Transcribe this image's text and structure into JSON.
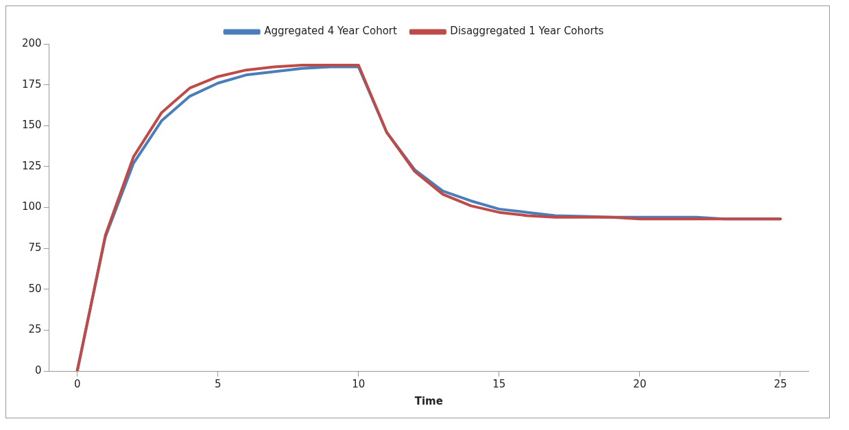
{
  "chart_data": {
    "type": "line",
    "xlabel": "Time",
    "x": [
      0,
      1,
      2,
      3,
      4,
      5,
      6,
      7,
      8,
      9,
      10,
      11,
      12,
      13,
      14,
      15,
      16,
      17,
      18,
      19,
      20,
      21,
      22,
      23,
      24,
      25
    ],
    "series": [
      {
        "name": "Aggregated 4 Year Cohort",
        "color": "#4a7ebb",
        "values": [
          0,
          82,
          127,
          153,
          168,
          176,
          181,
          183,
          185,
          186,
          186,
          146,
          123,
          110,
          104,
          99,
          97,
          95,
          94.5,
          94,
          94,
          94,
          94,
          93,
          93,
          93
        ]
      },
      {
        "name": "Disaggregated 1 Year Cohorts",
        "color": "#be4b48",
        "values": [
          0,
          83,
          131,
          158,
          173,
          180,
          184,
          186,
          187,
          187,
          187,
          146,
          122,
          108,
          101,
          97,
          95,
          94,
          94,
          94,
          93,
          93,
          93,
          93,
          93,
          93
        ]
      }
    ],
    "xlim": [
      -1,
      26
    ],
    "xticks": [
      0,
      5,
      10,
      15,
      20,
      25
    ],
    "ylim": [
      0,
      200
    ],
    "yticks": [
      0,
      25,
      50,
      75,
      100,
      125,
      150,
      175,
      200
    ],
    "grid": false,
    "legend": "top",
    "marker": "none",
    "line_style": "solid"
  }
}
